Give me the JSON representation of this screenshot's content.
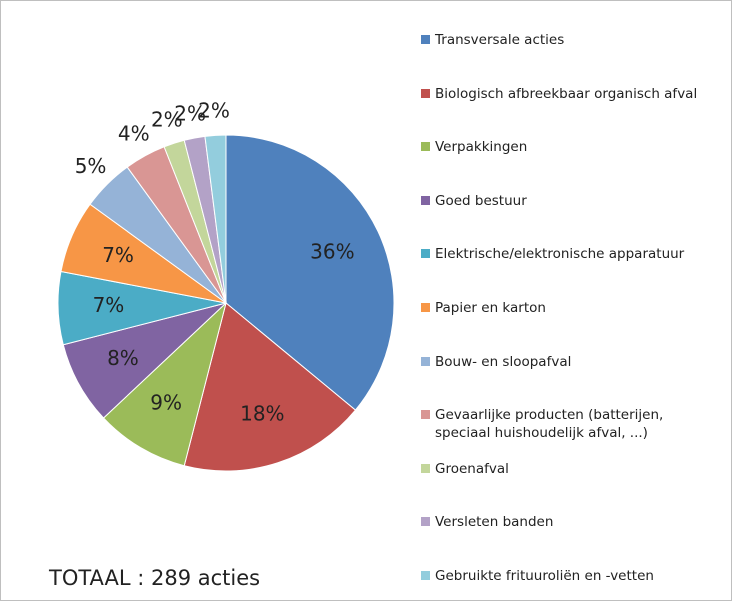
{
  "chart_data": {
    "type": "pie",
    "categories": [
      "Transversale acties",
      "Biologisch afbreekbaar organisch afval",
      "Verpakkingen",
      "Goed bestuur",
      "Elektrische/elektronische apparatuur",
      "Papier en karton",
      "Bouw- en sloopafval",
      "Gevaarlijke producten  (batterijen, speciaal huishoudelijk afval, ...)",
      "Groenafval",
      "Versleten banden",
      "Gebruikte frituuroliën en -vetten"
    ],
    "values": [
      36,
      18,
      9,
      8,
      7,
      7,
      5,
      4,
      2,
      2,
      2
    ],
    "value_labels": [
      "36%",
      "18%",
      "9%",
      "8%",
      "7%",
      "7%",
      "5%",
      "4%",
      "2%",
      "2%",
      "2%"
    ],
    "colors": [
      "#4F81BD",
      "#C0504D",
      "#9BBB59",
      "#8064A2",
      "#4BACC6",
      "#F79646",
      "#95B3D7",
      "#D99694",
      "#C3D69B",
      "#B3A2C7",
      "#93CDDD"
    ],
    "annotation": "TOTAAL : 289 acties"
  }
}
